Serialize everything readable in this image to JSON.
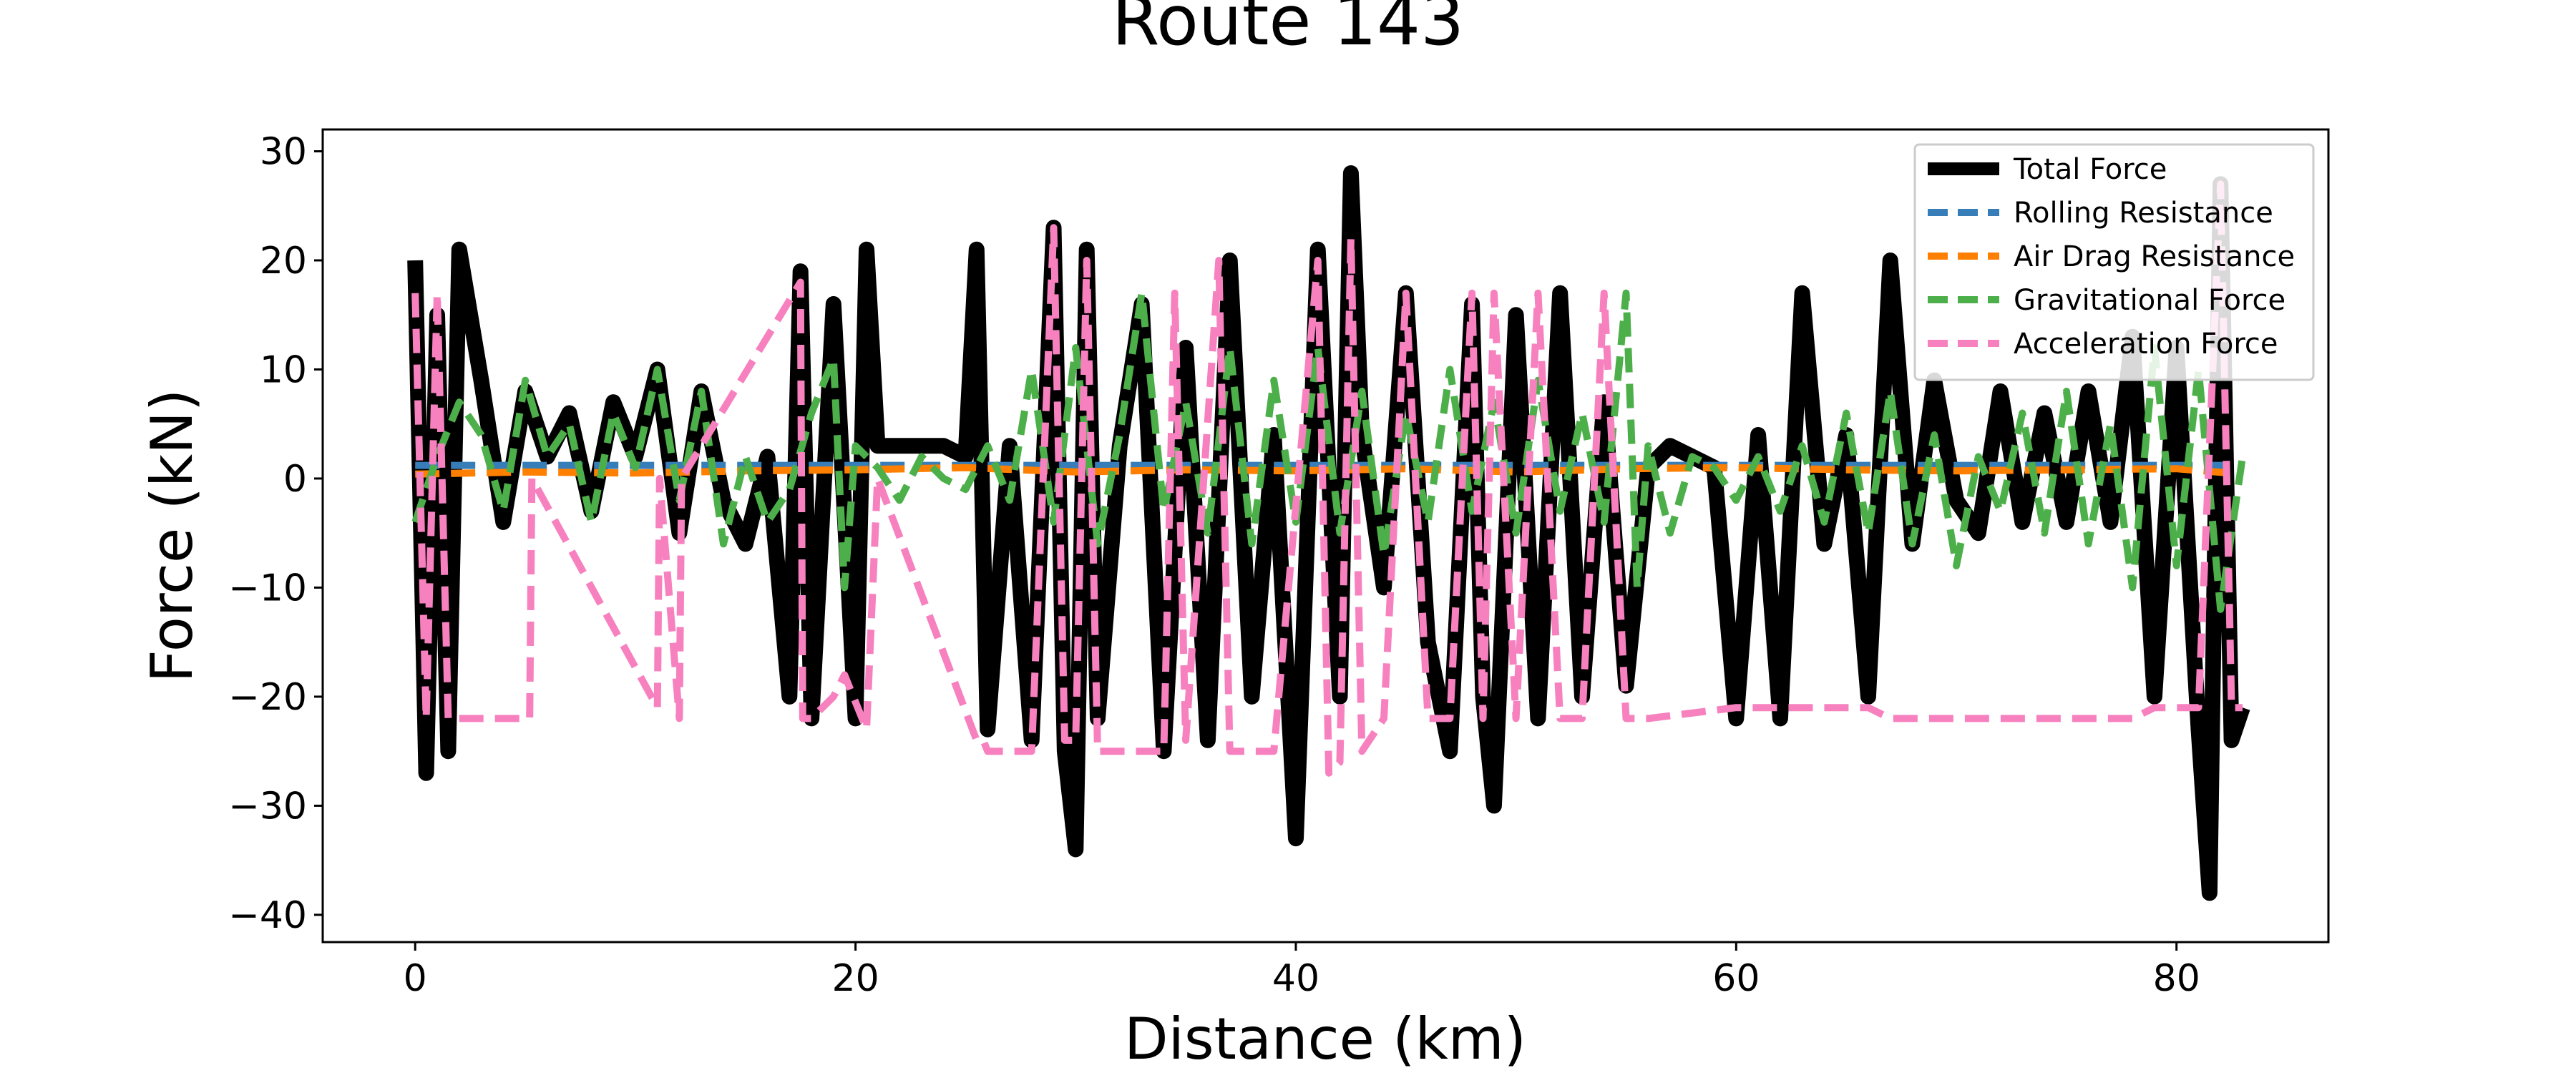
{
  "chart_data": {
    "type": "line",
    "title": "Route 143",
    "xlabel": "Distance (km)",
    "ylabel": "Force (kN)",
    "xlim": [
      -4.2,
      86.9
    ],
    "ylim": [
      -42.5,
      32.0
    ],
    "xticks": [
      0,
      20,
      40,
      60,
      80
    ],
    "yticks": [
      30,
      20,
      10,
      0,
      -10,
      -20,
      -30,
      -40
    ],
    "xtick_labels": [
      "0",
      "20",
      "40",
      "60",
      "80"
    ],
    "ytick_labels": [
      "30",
      "20",
      "10",
      "0",
      "−10",
      "−20",
      "−30",
      "−40"
    ],
    "grid": false,
    "legend_position": "top-right",
    "series": [
      {
        "name": "Total Force",
        "color": "#000000",
        "style": "solid",
        "x": [
          0,
          0.5,
          1,
          1.5,
          2,
          3,
          4,
          5,
          6,
          7,
          8,
          9,
          10,
          11,
          12,
          13,
          14,
          15,
          16,
          17,
          17.5,
          18,
          19,
          20,
          20.5,
          21,
          22,
          23,
          24,
          25,
          25.5,
          26,
          27,
          28,
          29,
          29.5,
          30,
          30.5,
          31,
          32,
          33,
          34,
          35,
          36,
          37,
          38,
          39,
          40,
          41,
          42,
          42.5,
          43,
          44,
          45,
          46,
          47,
          48,
          48.5,
          49,
          50,
          51,
          52,
          53,
          54,
          55,
          56,
          57,
          58,
          59,
          60,
          61,
          62,
          63,
          64,
          65,
          66,
          67,
          68,
          69,
          70,
          71,
          72,
          73,
          74,
          75,
          76,
          77,
          78,
          79,
          80,
          81,
          81.5,
          82,
          82.5,
          83
        ],
        "y": [
          20,
          -27,
          15,
          -25,
          21,
          9,
          -4,
          8,
          2,
          6,
          -3,
          7,
          2,
          10,
          -5,
          8,
          -2,
          -6,
          2,
          -20,
          19,
          -22,
          16,
          -22,
          21,
          3,
          3,
          3,
          3,
          2,
          21,
          -23,
          3,
          -24,
          23,
          -25,
          -34,
          21,
          -22,
          3,
          16,
          -25,
          12,
          -24,
          20,
          -20,
          4,
          -33,
          21,
          -20,
          28,
          4,
          -10,
          17,
          -15,
          -25,
          16,
          -20,
          -30,
          15,
          -22,
          17,
          -20,
          7,
          -19,
          1,
          3,
          2,
          1,
          -22,
          4,
          -22,
          17,
          -6,
          4,
          -20,
          20,
          -6,
          9,
          -2,
          -5,
          8,
          -4,
          6,
          -4,
          8,
          -4,
          13,
          -20,
          12,
          -23,
          -38,
          27,
          -24,
          -21
        ]
      },
      {
        "name": "Rolling Resistance",
        "color": "#377eb8",
        "style": "dashed",
        "x": [
          0,
          10,
          20,
          30,
          40,
          50,
          60,
          70,
          80,
          83
        ],
        "y": [
          1.2,
          1.2,
          1.2,
          1.2,
          1.2,
          1.2,
          1.2,
          1.2,
          1.2,
          1.2
        ]
      },
      {
        "name": "Air Drag Resistance",
        "color": "#ff7f00",
        "style": "dashed",
        "x": [
          0,
          5,
          10,
          15,
          20,
          25,
          30,
          35,
          40,
          45,
          50,
          55,
          60,
          65,
          70,
          75,
          80,
          83
        ],
        "y": [
          0.4,
          0.6,
          0.5,
          0.7,
          0.8,
          1.0,
          0.6,
          0.8,
          0.7,
          0.9,
          0.6,
          0.9,
          1.0,
          0.8,
          0.7,
          0.8,
          0.9,
          0.4
        ]
      },
      {
        "name": "Gravitational Force",
        "color": "#4daf4a",
        "style": "dashed",
        "x": [
          0,
          1,
          2,
          3,
          4,
          5,
          6,
          7,
          8,
          9,
          10,
          11,
          12,
          13,
          14,
          15,
          16,
          17,
          18,
          19,
          19.5,
          20,
          21,
          22,
          23,
          24,
          25,
          26,
          27,
          28,
          29,
          30,
          31,
          32,
          33,
          34,
          35,
          36,
          37,
          38,
          39,
          40,
          41,
          42,
          43,
          44,
          45,
          46,
          47,
          48,
          49,
          50,
          51,
          52,
          53,
          54,
          55,
          55.5,
          56,
          57,
          58,
          59,
          60,
          61,
          62,
          63,
          64,
          65,
          66,
          67,
          68,
          69,
          70,
          71,
          72,
          73,
          74,
          75,
          76,
          77,
          78,
          79,
          80,
          81,
          82,
          83
        ],
        "y": [
          -4,
          2,
          7,
          4,
          -3,
          9,
          2,
          5,
          -4,
          6,
          1,
          10,
          -2,
          8,
          -6,
          2,
          -4,
          -1,
          6,
          11,
          -10,
          3,
          1,
          -2,
          2,
          0,
          -1,
          3,
          -2,
          10,
          -4,
          12,
          -6,
          4,
          17,
          -3,
          7,
          -5,
          12,
          -6,
          9,
          -4,
          12,
          -5,
          8,
          -7,
          6,
          -4,
          10,
          -3,
          7,
          -5,
          9,
          -3,
          6,
          -4,
          17,
          -10,
          3,
          -5,
          2,
          1,
          -2,
          2,
          -3,
          3,
          -4,
          6,
          -5,
          8,
          -6,
          4,
          -8,
          2,
          -3,
          6,
          -5,
          8,
          -6,
          5,
          -10,
          12,
          -8,
          10,
          -12,
          2
        ]
      },
      {
        "name": "Acceleration Force",
        "color": "#f781bf",
        "style": "dashed",
        "x": [
          0,
          0.5,
          1,
          1.5,
          2,
          5.2,
          5.3,
          11,
          11.1,
          12,
          12.1,
          17.5,
          17.6,
          18,
          19,
          19.5,
          20.5,
          21,
          25.5,
          25.8,
          26,
          27,
          28,
          29,
          29.5,
          30,
          30.5,
          31,
          33,
          34,
          34.5,
          35,
          36.5,
          37,
          38,
          39,
          41,
          41.5,
          42,
          42.5,
          43,
          44,
          45,
          46,
          47,
          48,
          48.5,
          49,
          50,
          51,
          52,
          53,
          54,
          55,
          56,
          60,
          62,
          64,
          66,
          67,
          78,
          79,
          80,
          81,
          82,
          82.5,
          83
        ],
        "y": [
          17,
          -22,
          17,
          -22,
          -22,
          -22,
          0,
          -21,
          0,
          -22,
          0,
          18,
          -22,
          -22,
          -20,
          -18,
          -23,
          0,
          -24,
          -24,
          -25,
          -25,
          -25,
          23,
          -24,
          -24,
          20,
          -25,
          -25,
          -25,
          17,
          -24,
          20,
          -25,
          -25,
          -25,
          20,
          -27,
          -26,
          22,
          -25,
          -22,
          17,
          -22,
          -22,
          17,
          -22,
          17,
          -22,
          17,
          -22,
          -22,
          17,
          -22,
          -22,
          -21,
          -21,
          -21,
          -21,
          -22,
          -22,
          -21,
          -21,
          -21,
          27,
          -21,
          -21
        ]
      }
    ]
  }
}
